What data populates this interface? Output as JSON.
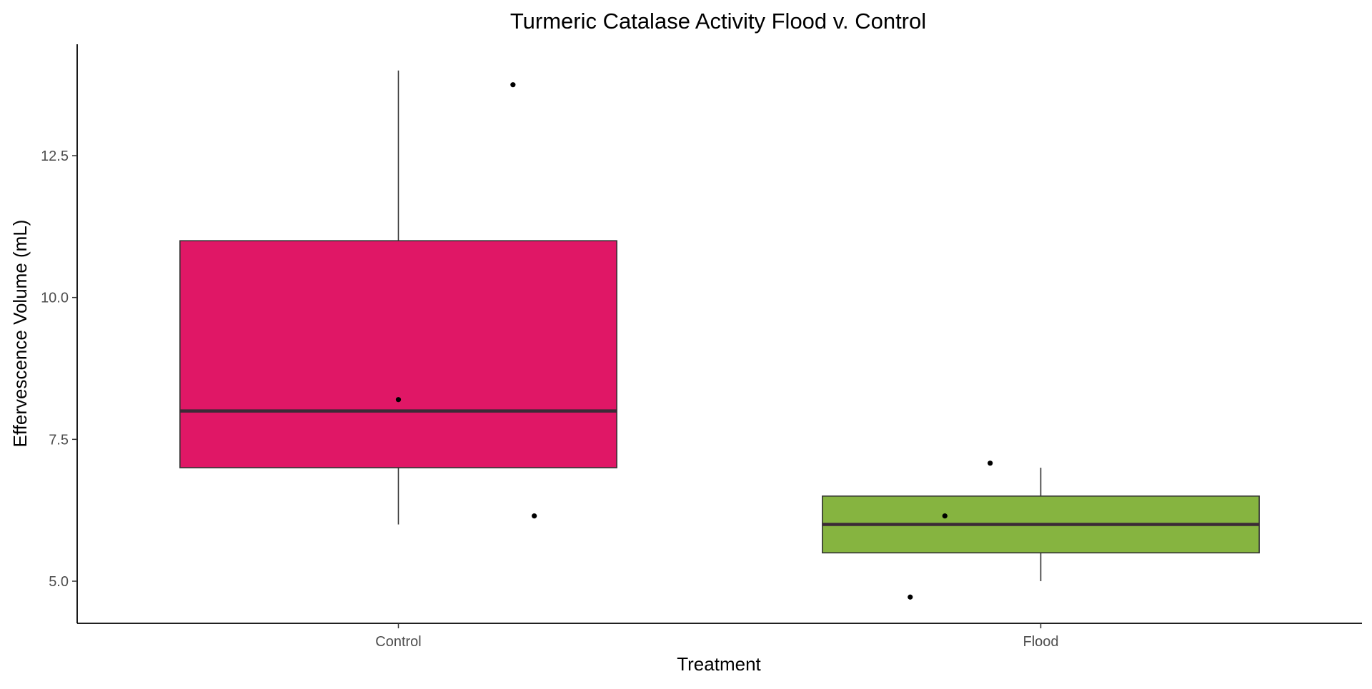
{
  "chart_data": {
    "type": "box",
    "title": "Turmeric Catalase Activity Flood v. Control",
    "xlabel": "Treatment",
    "ylabel": "Effervescence Volume (mL)",
    "ylim": [
      4.3,
      14.2
    ],
    "y_ticks": [
      5.0,
      7.5,
      10.0,
      12.5
    ],
    "y_tick_labels": [
      "5.0",
      "7.5",
      "10.0",
      "12.5"
    ],
    "grid": false,
    "categories": [
      "Control",
      "Flood"
    ],
    "boxes": [
      {
        "category": "Control",
        "whisker_low": 6.0,
        "q1": 7.0,
        "median": 8.0,
        "q3": 11.0,
        "whisker_high": 14.0,
        "fill": "#E01766"
      },
      {
        "category": "Flood",
        "whisker_low": 5.0,
        "q1": 5.5,
        "median": 6.0,
        "q3": 6.5,
        "whisker_high": 7.0,
        "fill": "#86B440"
      }
    ],
    "points": [
      {
        "category": "Control",
        "jitter": 0.43,
        "y": 13.75
      },
      {
        "category": "Control",
        "jitter": 0.0,
        "y": 8.2
      },
      {
        "category": "Control",
        "jitter": 0.51,
        "y": 6.15
      },
      {
        "category": "Flood",
        "jitter": -0.49,
        "y": 4.72
      },
      {
        "category": "Flood",
        "jitter": -0.36,
        "y": 6.15
      },
      {
        "category": "Flood",
        "jitter": -0.19,
        "y": 7.08
      }
    ],
    "colors": {
      "box_outline": "#333333",
      "median_line": "#3b2a36",
      "axis": "#000000",
      "point": "#000000"
    }
  }
}
